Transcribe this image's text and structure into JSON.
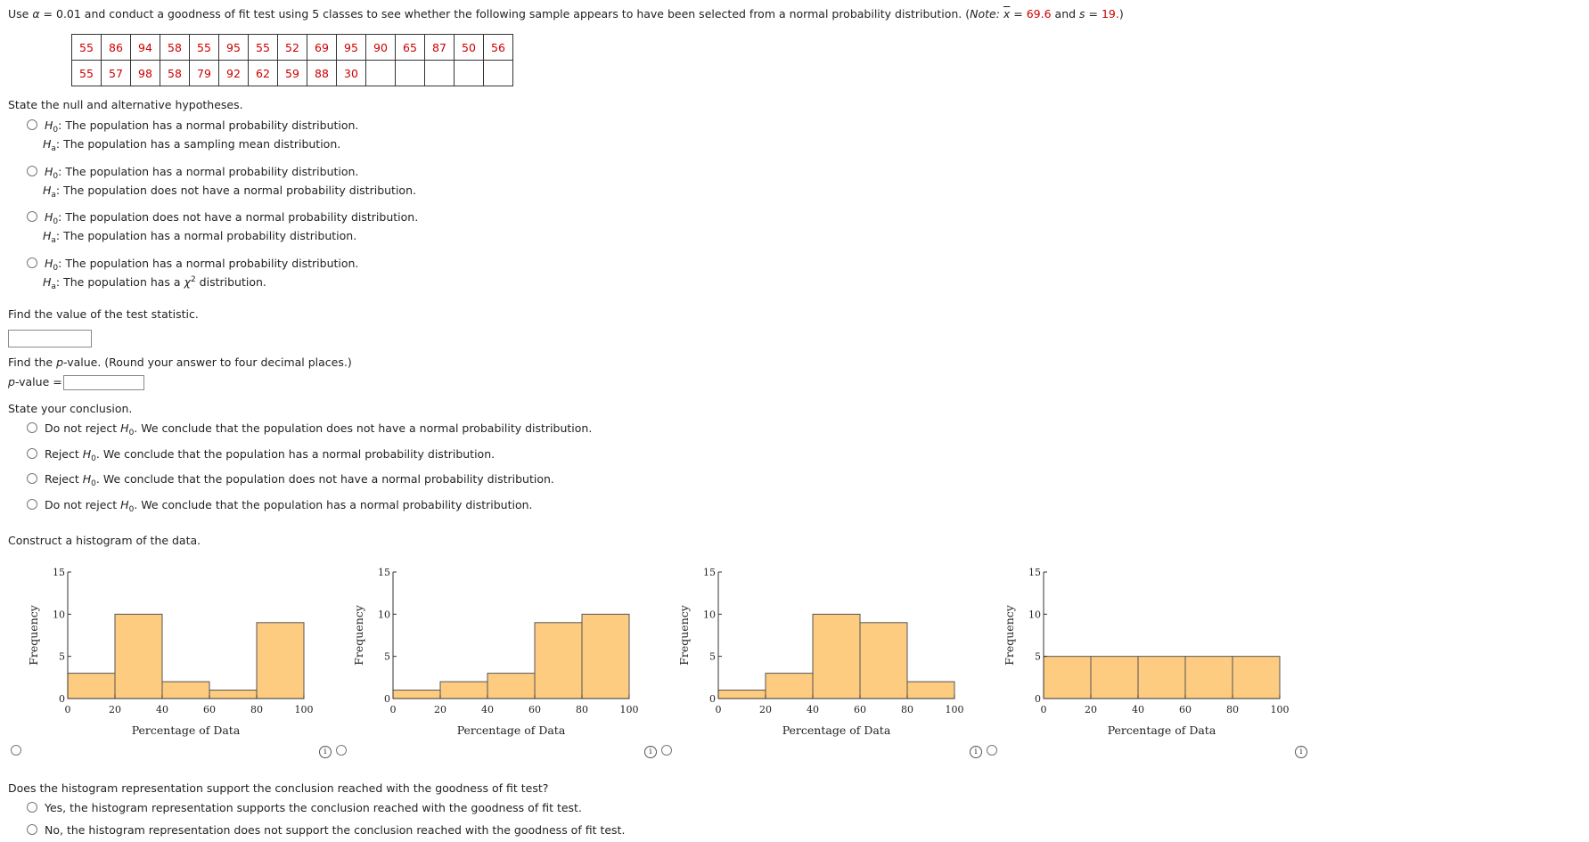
{
  "intro": {
    "prefix": "Use ",
    "alpha_sym": "α",
    "alpha_text": " = 0.01 and conduct a goodness of fit test using 5 classes to see whether the following sample appears to have been selected from a normal probability distribution. (",
    "note_label": "Note:",
    "note_space": " ",
    "xbar_sym": "x",
    "eq": " = ",
    "xbar_val": "69.6",
    "and": " and ",
    "s_label": "s",
    "s_eq": " = ",
    "s_val": "19.",
    "close": ")"
  },
  "data_table": {
    "row1": [
      "55",
      "86",
      "94",
      "58",
      "55",
      "95",
      "55",
      "52",
      "69",
      "95",
      "90",
      "65",
      "87",
      "50",
      "56"
    ],
    "row2": [
      "55",
      "57",
      "98",
      "58",
      "79",
      "92",
      "62",
      "59",
      "88",
      "30",
      "",
      "",
      "",
      "",
      ""
    ]
  },
  "hypotheses": {
    "prompt": "State the null and alternative hypotheses.",
    "options": [
      {
        "h0": "The population has a normal probability distribution.",
        "ha": "The population has a sampling mean distribution."
      },
      {
        "h0": "The population has a normal probability distribution.",
        "ha": "The population does not have a normal probability distribution."
      },
      {
        "h0": "The population does not have a normal probability distribution.",
        "ha": "The population has a normal probability distribution."
      },
      {
        "h0": "The population has a normal probability distribution.",
        "ha_pre": "The population has a ",
        "ha_chi": "χ",
        "ha_sup": "2",
        "ha_post": " distribution."
      }
    ],
    "h_label": "H",
    "h0_sub": "0",
    "ha_sub": "a",
    "colon": ":"
  },
  "test_stat": {
    "prompt": "Find the value of the test statistic."
  },
  "pvalue": {
    "prompt_a": "Find the ",
    "prompt_p": "p",
    "prompt_b": "-value. (Round your answer to four decimal places.)",
    "label_p": "p",
    "label_rest": "-value ="
  },
  "conclusion": {
    "prompt": "State your conclusion.",
    "options": [
      {
        "pre": "Do not reject ",
        "post": ". We conclude that the population does not have a normal probability distribution."
      },
      {
        "pre": "Reject ",
        "post": ". We conclude that the population has a normal probability distribution."
      },
      {
        "pre": "Reject ",
        "post": ". We conclude that the population does not have a normal probability distribution."
      },
      {
        "pre": "Do not reject ",
        "post": ". We conclude that the population has a normal probability distribution."
      }
    ]
  },
  "histogram_prompt": "Construct a histogram of the data.",
  "chart_data": [
    {
      "type": "bar",
      "bin_edges": [
        0,
        20,
        40,
        60,
        80,
        100
      ],
      "values": [
        3,
        10,
        2,
        1,
        9
      ],
      "xlabel": "Percentage of Data",
      "ylabel": "Frequency",
      "ylim": [
        0,
        15
      ],
      "xticks": [
        0,
        20,
        40,
        60,
        80,
        100
      ],
      "yticks": [
        0,
        5,
        10,
        15
      ],
      "bar_color": "#fdcc80"
    },
    {
      "type": "bar",
      "bin_edges": [
        0,
        20,
        40,
        60,
        80,
        100
      ],
      "values": [
        1,
        2,
        3,
        9,
        10
      ],
      "xlabel": "Percentage of Data",
      "ylabel": "Frequency",
      "ylim": [
        0,
        15
      ],
      "xticks": [
        0,
        20,
        40,
        60,
        80,
        100
      ],
      "yticks": [
        0,
        5,
        10,
        15
      ],
      "bar_color": "#fdcc80"
    },
    {
      "type": "bar",
      "bin_edges": [
        0,
        20,
        40,
        60,
        80,
        100
      ],
      "values": [
        1,
        3,
        10,
        9,
        2
      ],
      "xlabel": "Percentage of Data",
      "ylabel": "Frequency",
      "ylim": [
        0,
        15
      ],
      "xticks": [
        0,
        20,
        40,
        60,
        80,
        100
      ],
      "yticks": [
        0,
        5,
        10,
        15
      ],
      "bar_color": "#fdcc80"
    },
    {
      "type": "bar",
      "bin_edges": [
        0,
        20,
        40,
        60,
        80,
        100
      ],
      "values": [
        5,
        5,
        5,
        5,
        5
      ],
      "xlabel": "Percentage of Data",
      "ylabel": "Frequency",
      "ylim": [
        0,
        15
      ],
      "xticks": [
        0,
        20,
        40,
        60,
        80,
        100
      ],
      "yticks": [
        0,
        5,
        10,
        15
      ],
      "bar_color": "#fdcc80"
    }
  ],
  "support": {
    "prompt": "Does the histogram representation support the conclusion reached with the goodness of fit test?",
    "options": [
      "Yes, the histogram representation supports the conclusion reached with the goodness of fit test.",
      "No, the histogram representation does not support the conclusion reached with the goodness of fit test."
    ]
  },
  "icons": {
    "info_glyph": "i"
  }
}
